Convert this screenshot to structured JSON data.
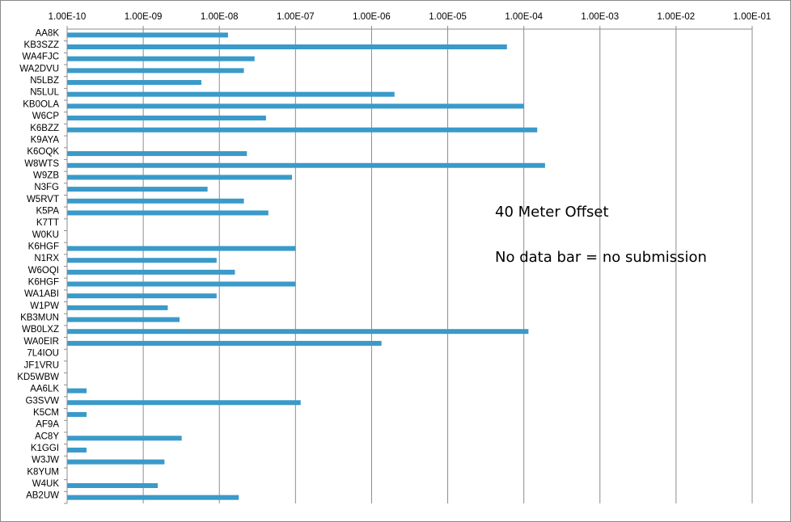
{
  "chart_data": {
    "type": "bar",
    "orientation": "horizontal",
    "x_scale": "log",
    "xlim": [
      1e-10,
      0.1
    ],
    "x_ticks": [
      1e-10,
      1e-09,
      1e-08,
      1e-07,
      1e-06,
      1e-05,
      0.0001,
      0.001,
      0.01,
      0.1
    ],
    "x_tick_labels": [
      "1.00E-10",
      "1.00E-09",
      "1.00E-08",
      "1.00E-07",
      "1.00E-06",
      "1.00E-05",
      "1.00E-04",
      "1.00E-03",
      "1.00E-02",
      "1.00E-01"
    ],
    "x_axis_position": "top",
    "grid": "vertical",
    "legend": "none",
    "bar_color": "#3a9ac9",
    "grid_color": "#8c8c8c",
    "categories": [
      "AA8K",
      "KB3SZZ",
      "WA4FJC",
      "WA2DVU",
      "N5LBZ",
      "N5LUL",
      "KB0OLA",
      "W6CP",
      "K6BZZ",
      "K9AYA",
      "K6OQK",
      "W8WTS",
      "W9ZB",
      "N3FG",
      "W5RVT",
      "K5PA",
      "K7TT",
      "W0KU",
      "K6HGF",
      "N1RX",
      "W6OQI",
      "K6HGF",
      "WA1ABI",
      "W1PW",
      "KB3MUN",
      "WB0LXZ",
      "WA0EIR",
      "7L4IOU",
      "JF1VRU",
      "KD5WBW",
      "AA6LK",
      "G3SVW",
      "K5CM",
      "AF9A",
      "AC8Y",
      "K1GGI",
      "W3JW",
      "K8YUM",
      "W4UK",
      "AB2UW"
    ],
    "values": [
      1.3e-08,
      6e-05,
      2.9e-08,
      2.1e-08,
      5.8e-09,
      2e-06,
      0.0001,
      4.1e-08,
      0.00015,
      null,
      2.3e-08,
      0.00019,
      9e-08,
      7e-09,
      2.1e-08,
      4.4e-08,
      null,
      null,
      1e-07,
      9.2e-09,
      1.6e-08,
      1e-07,
      9.2e-09,
      2.1e-09,
      3e-09,
      0.000115,
      1.35e-06,
      null,
      null,
      null,
      1.8e-10,
      1.17e-07,
      1.8e-10,
      null,
      3.2e-09,
      1.8e-10,
      1.9e-09,
      null,
      1.55e-09,
      1.8e-08
    ],
    "annotations": [
      "40 Meter Offset",
      "No data bar = no submission"
    ]
  }
}
